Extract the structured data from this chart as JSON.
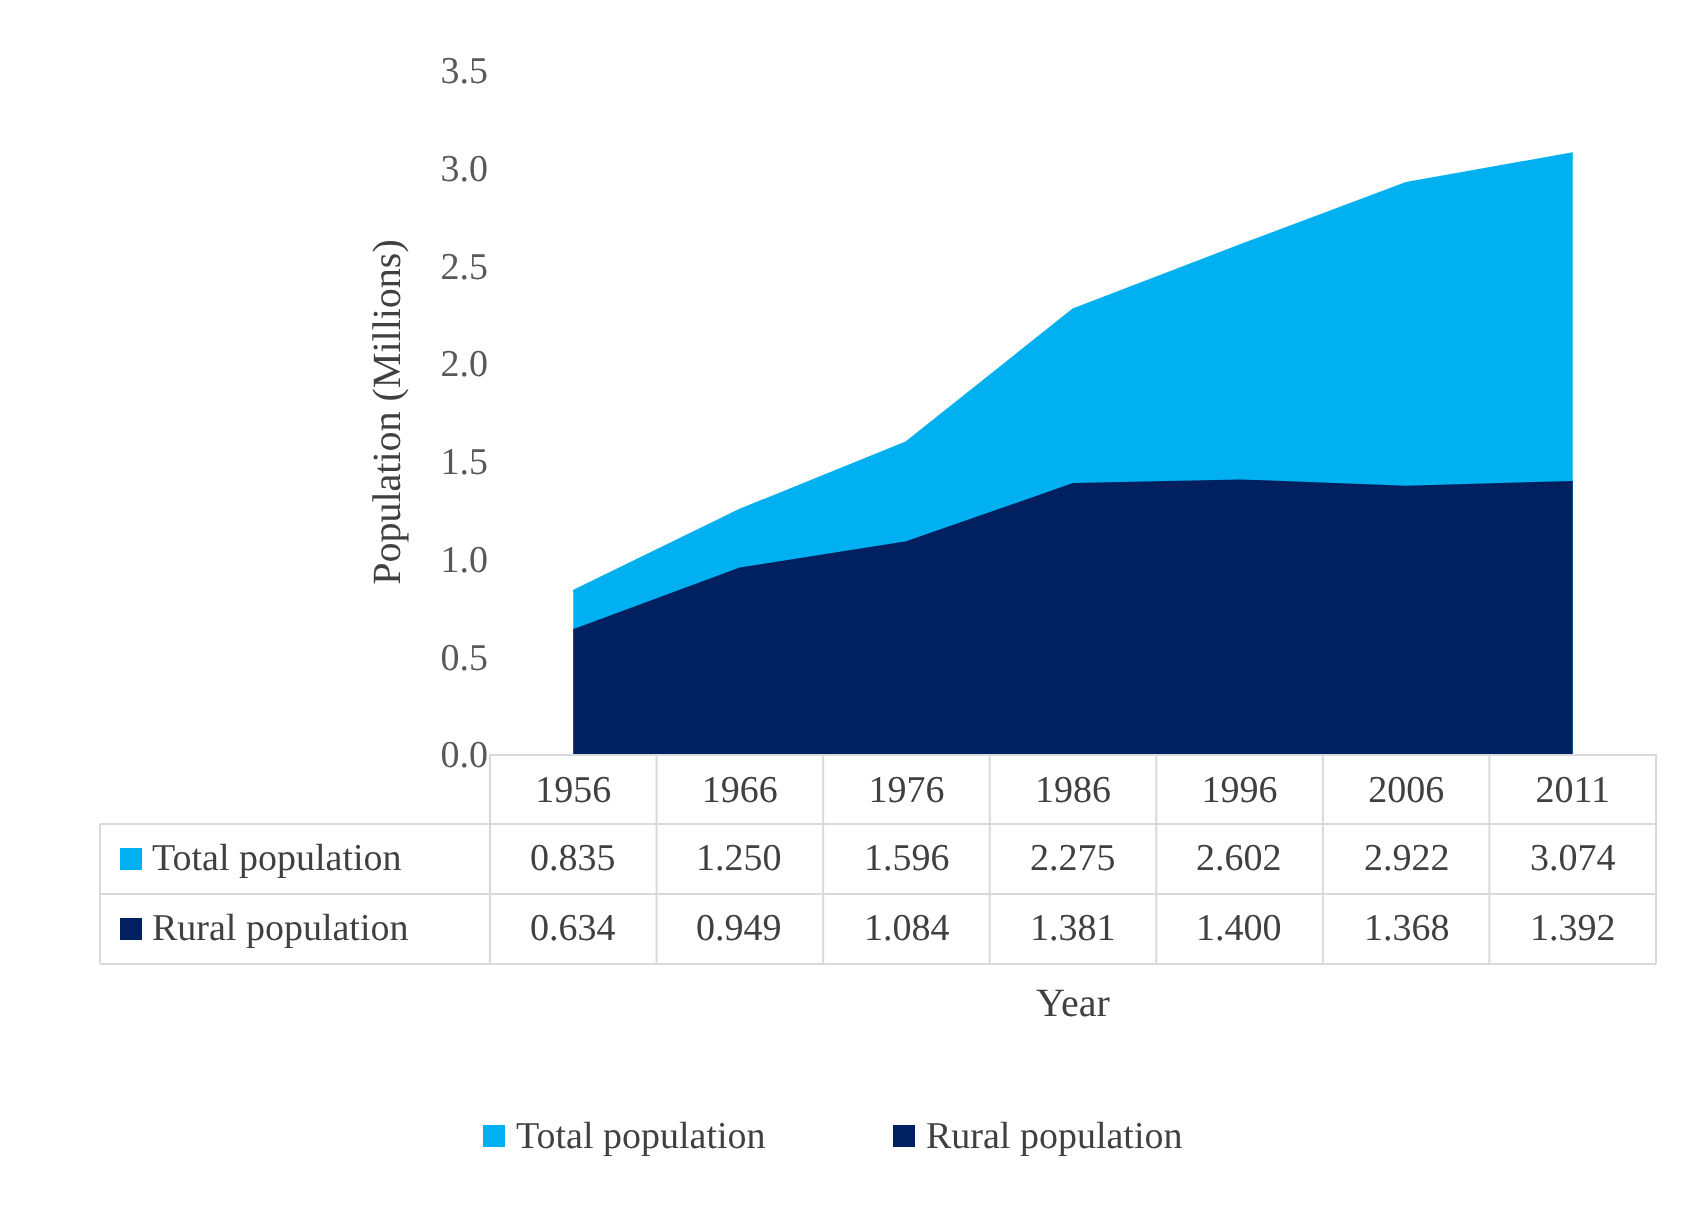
{
  "chart_data": {
    "type": "area",
    "ylabel": "Population (Millions)",
    "xlabel": "Year",
    "categories": [
      "1956",
      "1966",
      "1976",
      "1986",
      "1996",
      "2006",
      "2011"
    ],
    "series": [
      {
        "name": "Total population",
        "color": "#00b0f0",
        "values": [
          0.835,
          1.25,
          1.596,
          2.275,
          2.602,
          2.922,
          3.074
        ],
        "value_labels": [
          "0.835",
          "1.250",
          "1.596",
          "2.275",
          "2.602",
          "2.922",
          "3.074"
        ]
      },
      {
        "name": "Rural population",
        "color": "#002060",
        "values": [
          0.634,
          0.949,
          1.084,
          1.381,
          1.4,
          1.368,
          1.392
        ],
        "value_labels": [
          "0.634",
          "0.949",
          "1.084",
          "1.381",
          "1.400",
          "1.368",
          "1.392"
        ]
      }
    ],
    "ylim": [
      0,
      3.5
    ],
    "yticks": [
      {
        "value": 0,
        "label": "0.0"
      },
      {
        "value": 0.5,
        "label": "0.5"
      },
      {
        "value": 1,
        "label": "1.0"
      },
      {
        "value": 1.5,
        "label": "1.5"
      },
      {
        "value": 2,
        "label": "2.0"
      },
      {
        "value": 2.5,
        "label": "2.5"
      },
      {
        "value": 3,
        "label": "3.0"
      },
      {
        "value": 3.5,
        "label": "3.5"
      }
    ],
    "grid": false,
    "legend": "bottom"
  }
}
